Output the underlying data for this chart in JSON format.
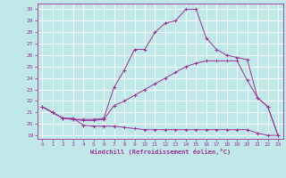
{
  "xlabel": "Windchill (Refroidissement éolien,°C)",
  "bg_color": "#c0e8e8",
  "line_color": "#993399",
  "grid_color": "#ffffff",
  "xlim": [
    -0.5,
    23.5
  ],
  "ylim": [
    18.7,
    30.5
  ],
  "xticks": [
    0,
    1,
    2,
    3,
    4,
    5,
    6,
    7,
    8,
    9,
    10,
    11,
    12,
    13,
    14,
    15,
    16,
    17,
    18,
    19,
    20,
    21,
    22,
    23
  ],
  "yticks": [
    19,
    20,
    21,
    22,
    23,
    24,
    25,
    26,
    27,
    28,
    29,
    30
  ],
  "series_bottom": [
    [
      0,
      21.5
    ],
    [
      1,
      21.0
    ],
    [
      2,
      20.5
    ],
    [
      3,
      20.5
    ],
    [
      4,
      19.9
    ],
    [
      5,
      19.8
    ],
    [
      6,
      19.8
    ],
    [
      7,
      19.8
    ],
    [
      8,
      19.7
    ],
    [
      9,
      19.6
    ],
    [
      10,
      19.5
    ],
    [
      11,
      19.5
    ],
    [
      12,
      19.5
    ],
    [
      13,
      19.5
    ],
    [
      14,
      19.5
    ],
    [
      15,
      19.5
    ],
    [
      16,
      19.5
    ],
    [
      17,
      19.5
    ],
    [
      18,
      19.5
    ],
    [
      19,
      19.5
    ],
    [
      20,
      19.5
    ],
    [
      21,
      19.2
    ],
    [
      22,
      19.0
    ],
    [
      23,
      19.0
    ]
  ],
  "series_upper": [
    [
      0,
      21.5
    ],
    [
      1,
      21.0
    ],
    [
      2,
      20.5
    ],
    [
      3,
      20.4
    ],
    [
      4,
      20.4
    ],
    [
      5,
      20.4
    ],
    [
      6,
      20.5
    ],
    [
      7,
      23.2
    ],
    [
      8,
      24.7
    ],
    [
      9,
      26.5
    ],
    [
      10,
      26.5
    ],
    [
      11,
      28.0
    ],
    [
      12,
      28.8
    ],
    [
      13,
      29.0
    ],
    [
      14,
      30.0
    ],
    [
      15,
      30.0
    ],
    [
      16,
      27.5
    ],
    [
      17,
      26.5
    ],
    [
      18,
      26.0
    ],
    [
      19,
      25.8
    ],
    [
      20,
      25.6
    ],
    [
      21,
      22.3
    ],
    [
      22,
      21.5
    ],
    [
      23,
      19.0
    ]
  ],
  "series_middle": [
    [
      0,
      21.5
    ],
    [
      1,
      21.0
    ],
    [
      2,
      20.5
    ],
    [
      3,
      20.4
    ],
    [
      4,
      20.3
    ],
    [
      5,
      20.3
    ],
    [
      6,
      20.4
    ],
    [
      7,
      21.6
    ],
    [
      8,
      22.0
    ],
    [
      9,
      22.5
    ],
    [
      10,
      23.0
    ],
    [
      11,
      23.5
    ],
    [
      12,
      24.0
    ],
    [
      13,
      24.5
    ],
    [
      14,
      25.0
    ],
    [
      15,
      25.3
    ],
    [
      16,
      25.5
    ],
    [
      17,
      25.5
    ],
    [
      18,
      25.5
    ],
    [
      19,
      25.5
    ],
    [
      20,
      23.8
    ],
    [
      21,
      22.3
    ],
    [
      22,
      21.5
    ],
    [
      23,
      19.0
    ]
  ]
}
